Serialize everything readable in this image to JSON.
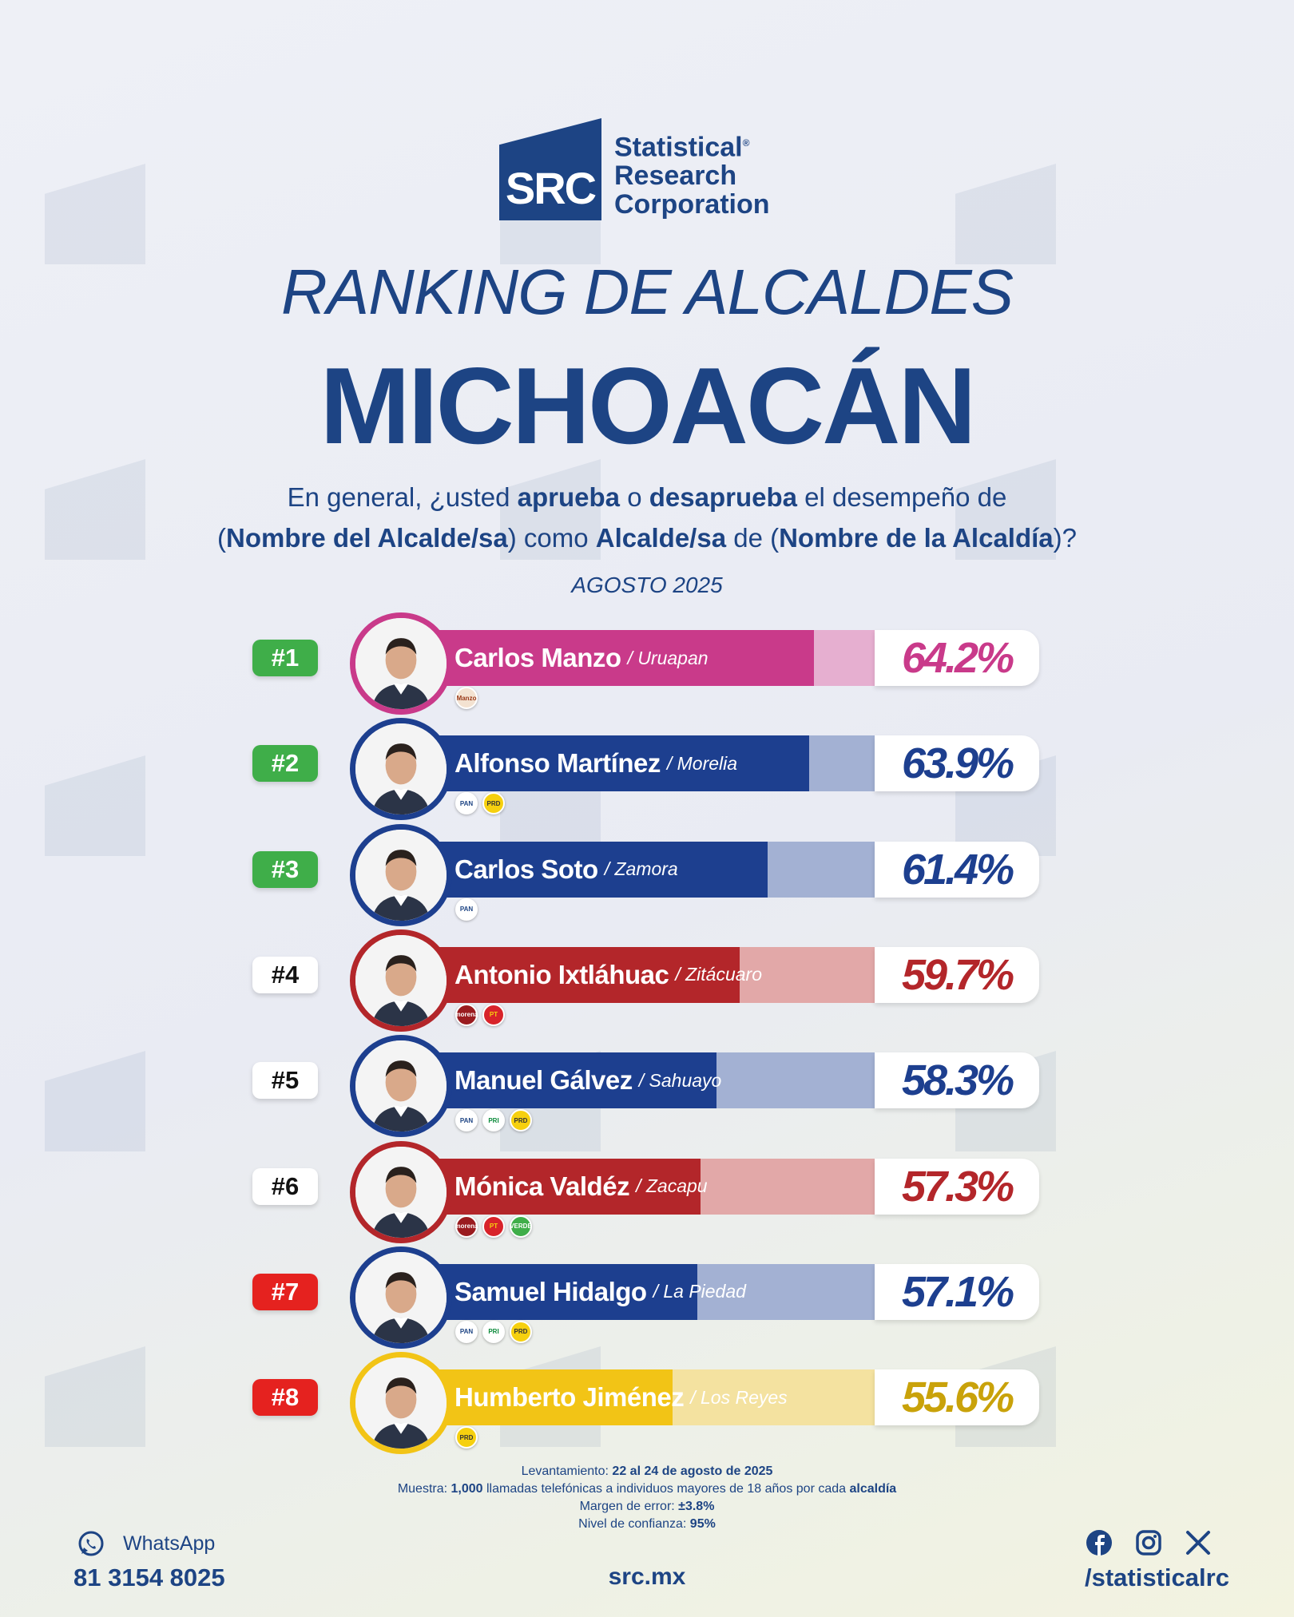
{
  "brand": {
    "logo_mark": "SRC",
    "name_line1": "Statistical",
    "name_line2": "Research",
    "name_line3": "Corporation",
    "reg": "®"
  },
  "title": {
    "line1": "RANKING DE ALCALDES",
    "line2": "MICHOACÁN"
  },
  "question": {
    "p1": "En general, ¿usted ",
    "b1": "aprueba",
    "p2": " o ",
    "b2": "desaprueba",
    "p3": " el desempeño de",
    "p4": "(",
    "b3": "Nombre del Alcalde/sa",
    "p5": ") como ",
    "b4": "Alcalde/sa",
    "p6": " de (",
    "b5": "Nombre de la Alcaldía",
    "p7": ")?"
  },
  "date": "AGOSTO 2025",
  "chart_data": {
    "type": "bar",
    "orientation": "horizontal",
    "unit": "%",
    "categories": [
      "Carlos Manzo",
      "Alfonso Martínez",
      "Carlos Soto",
      "Antonio Ixtláhuac",
      "Manuel Gálvez",
      "Mónica Valdéz",
      "Samuel Hidalgo",
      "Humberto Jiménez"
    ],
    "values": [
      64.2,
      63.9,
      61.4,
      59.7,
      58.3,
      57.3,
      57.1,
      55.6
    ],
    "rows": [
      {
        "rank": "#1",
        "name": "Carlos Manzo",
        "city": "/ Uruapan",
        "value": 64.2,
        "label": "64.2%",
        "color": "#c93a8a",
        "light": "#e6afd0",
        "rank_bg": "#3fae49",
        "rank_fg": "#ffffff",
        "pct_color": "#c93a8a",
        "parties": [
          {
            "text": "Manzo",
            "bg": "#f3e2d1",
            "fg": "#9a3a1a"
          }
        ]
      },
      {
        "rank": "#2",
        "name": "Alfonso Martínez",
        "city": "/ Morelia",
        "value": 63.9,
        "label": "63.9%",
        "color": "#1d3f8f",
        "light": "#a3b1d3",
        "rank_bg": "#3fae49",
        "rank_fg": "#ffffff",
        "pct_color": "#1d3f8f",
        "parties": [
          {
            "text": "PAN",
            "bg": "#ffffff",
            "fg": "#1d4484"
          },
          {
            "text": "PRD",
            "bg": "#f6d00f",
            "fg": "#333333"
          }
        ]
      },
      {
        "rank": "#3",
        "name": "Carlos Soto",
        "city": "/ Zamora",
        "value": 61.4,
        "label": "61.4%",
        "color": "#1d3f8f",
        "light": "#a3b1d3",
        "rank_bg": "#3fae49",
        "rank_fg": "#ffffff",
        "pct_color": "#1d3f8f",
        "parties": [
          {
            "text": "PAN",
            "bg": "#ffffff",
            "fg": "#1d4484"
          }
        ]
      },
      {
        "rank": "#4",
        "name": "Antonio Ixtláhuac",
        "city": "/ Zitácuaro",
        "value": 59.7,
        "label": "59.7%",
        "color": "#b3262a",
        "light": "#e2a8a8",
        "rank_bg": "#ffffff",
        "rank_fg": "#111111",
        "pct_color": "#b3262a",
        "parties": [
          {
            "text": "morena",
            "bg": "#9a1b1f",
            "fg": "#ffffff"
          },
          {
            "text": "PT",
            "bg": "#d8232a",
            "fg": "#f6d00f"
          }
        ]
      },
      {
        "rank": "#5",
        "name": "Manuel Gálvez",
        "city": "/ Sahuayo",
        "value": 58.3,
        "label": "58.3%",
        "color": "#1d3f8f",
        "light": "#a3b1d3",
        "rank_bg": "#ffffff",
        "rank_fg": "#111111",
        "pct_color": "#1d3f8f",
        "parties": [
          {
            "text": "PAN",
            "bg": "#ffffff",
            "fg": "#1d4484"
          },
          {
            "text": "PRI",
            "bg": "#ffffff",
            "fg": "#0a8a3a"
          },
          {
            "text": "PRD",
            "bg": "#f6d00f",
            "fg": "#333333"
          }
        ]
      },
      {
        "rank": "#6",
        "name": "Mónica Valdéz",
        "city": "/ Zacapu",
        "value": 57.3,
        "label": "57.3%",
        "color": "#b3262a",
        "light": "#e2a8a8",
        "rank_bg": "#ffffff",
        "rank_fg": "#111111",
        "pct_color": "#b3262a",
        "parties": [
          {
            "text": "morena",
            "bg": "#9a1b1f",
            "fg": "#ffffff"
          },
          {
            "text": "PT",
            "bg": "#d8232a",
            "fg": "#f6d00f"
          },
          {
            "text": "VERDE",
            "bg": "#3fae49",
            "fg": "#ffffff"
          }
        ]
      },
      {
        "rank": "#7",
        "name": "Samuel Hidalgo",
        "city": "/ La Piedad",
        "value": 57.1,
        "label": "57.1%",
        "color": "#1d3f8f",
        "light": "#a3b1d3",
        "rank_bg": "#e5221f",
        "rank_fg": "#ffffff",
        "pct_color": "#1d3f8f",
        "parties": [
          {
            "text": "PAN",
            "bg": "#ffffff",
            "fg": "#1d4484"
          },
          {
            "text": "PRI",
            "bg": "#ffffff",
            "fg": "#0a8a3a"
          },
          {
            "text": "PRD",
            "bg": "#f6d00f",
            "fg": "#333333"
          }
        ]
      },
      {
        "rank": "#8",
        "name": "Humberto Jiménez",
        "city": "/ Los Reyes",
        "value": 55.6,
        "label": "55.6%",
        "color": "#f2c416",
        "light": "#f4e2a0",
        "rank_bg": "#e5221f",
        "rank_fg": "#ffffff",
        "pct_color": "#c9a20a",
        "parties": [
          {
            "text": "PRD",
            "bg": "#f6d00f",
            "fg": "#333333"
          }
        ]
      }
    ]
  },
  "notes": {
    "l1a": "Levantamiento: ",
    "l1b": "22 al 24 de agosto de 2025",
    "l2a": "Muestra: ",
    "l2b": "1,000",
    "l2c": " llamadas telefónicas a individuos mayores de 18 años por cada ",
    "l2d": "alcaldía",
    "l3a": "Margen de error: ",
    "l3b": "±3.8%",
    "l4a": "Nivel de confianza: ",
    "l4b": "95%"
  },
  "footer": {
    "whatsapp": "WhatsApp",
    "phone": "81 3154 8025",
    "site": "src.mx",
    "handle": "/statisticalrc"
  },
  "icons": {
    "whatsapp": "whatsapp-icon",
    "facebook": "facebook-icon",
    "instagram": "instagram-icon",
    "x": "x-icon"
  },
  "colors": {
    "primary": "#1d4484",
    "accent_magenta": "#c93a8a",
    "accent_red": "#b3262a",
    "accent_yellow": "#f2c416"
  }
}
